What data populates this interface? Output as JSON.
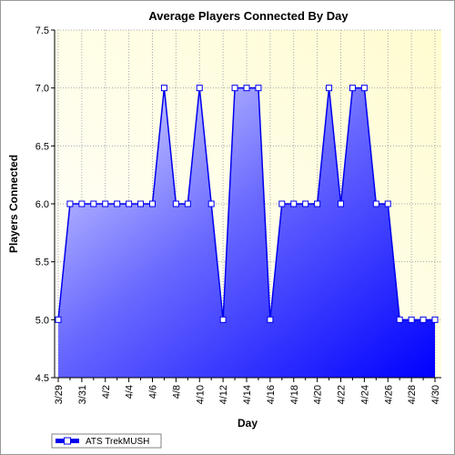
{
  "chart_data": {
    "type": "area",
    "title": "Average Players Connected By Day",
    "xlabel": "Day",
    "ylabel": "Players Connected",
    "ylim": [
      4.5,
      7.5
    ],
    "yticks": [
      "4.5",
      "5.0",
      "5.5",
      "6.0",
      "6.5",
      "7.0",
      "7.5"
    ],
    "x": [
      "3/29",
      "3/30",
      "3/31",
      "4/1",
      "4/2",
      "4/3",
      "4/4",
      "4/5",
      "4/6",
      "4/7",
      "4/8",
      "4/9",
      "4/10",
      "4/11",
      "4/12",
      "4/13",
      "4/14",
      "4/15",
      "4/16",
      "4/17",
      "4/18",
      "4/19",
      "4/20",
      "4/21",
      "4/22",
      "4/23",
      "4/24",
      "4/25",
      "4/26",
      "4/27",
      "4/28",
      "4/29",
      "4/30"
    ],
    "xtick_labels": [
      "3/29",
      "3/31",
      "4/2",
      "4/4",
      "4/6",
      "4/8",
      "4/10",
      "4/12",
      "4/14",
      "4/16",
      "4/18",
      "4/20",
      "4/22",
      "4/24",
      "4/26",
      "4/28",
      "4/30"
    ],
    "series": [
      {
        "name": "ATS TrekMUSH",
        "values": [
          5.0,
          6.0,
          6.0,
          6.0,
          6.0,
          6.0,
          6.0,
          6.0,
          6.0,
          7.0,
          6.0,
          6.0,
          7.0,
          6.0,
          5.0,
          7.0,
          7.0,
          7.0,
          5.0,
          6.0,
          6.0,
          6.0,
          6.0,
          7.0,
          6.0,
          7.0,
          7.0,
          6.0,
          6.0,
          5.0,
          5.0,
          5.0,
          5.0
        ]
      }
    ],
    "grid": true,
    "legend_position": "bottom-left",
    "colors": {
      "plot_background": "#fffde0",
      "line": "#0000ee",
      "fill_light": "#d2d2ff",
      "fill_dark": "#0000ff",
      "marker_fill": "#ffffff",
      "grid": "#a8a8a8"
    }
  }
}
